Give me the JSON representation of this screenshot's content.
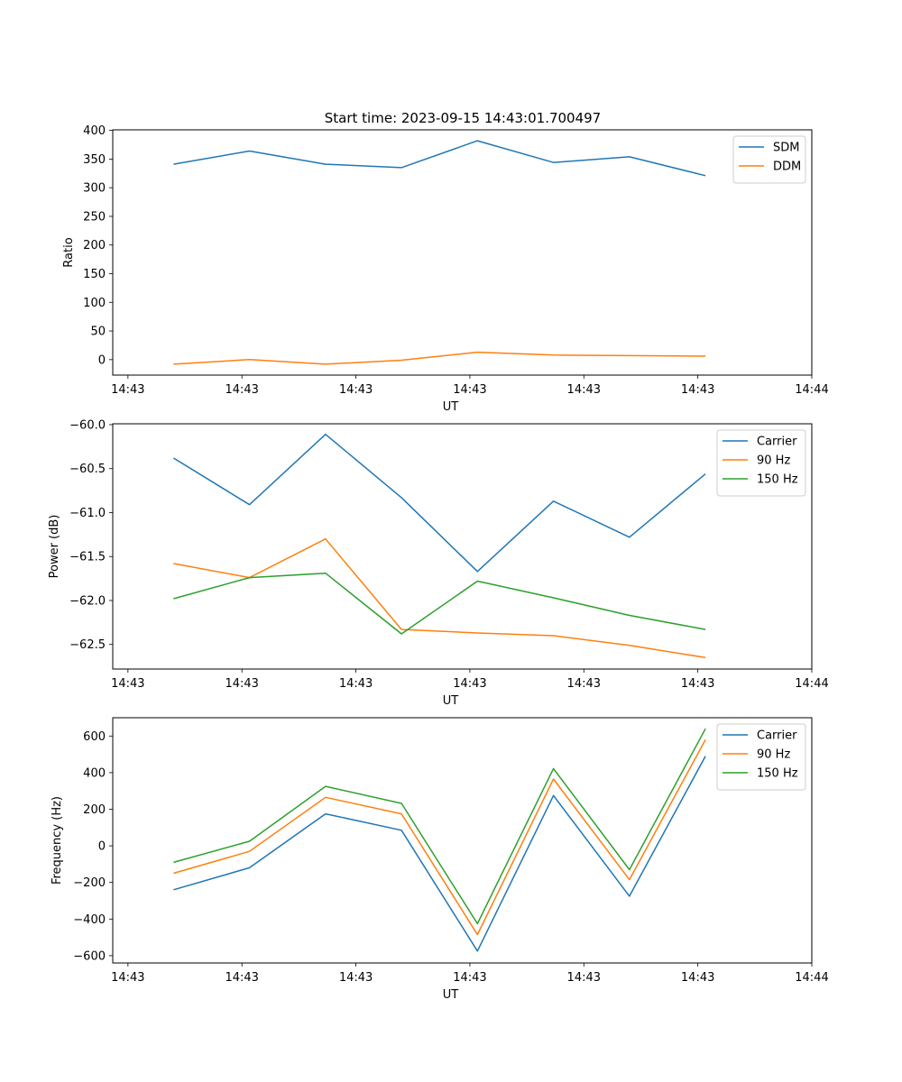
{
  "figure": {
    "title": "Start time: 2023-09-15 14:43:01.700497"
  },
  "chart_data": [
    {
      "type": "line",
      "title": "Start time: 2023-09-15 14:43:01.700497",
      "xlabel": "UT",
      "ylabel": "Ratio",
      "x": [
        1,
        2,
        3,
        4,
        5,
        6,
        7,
        8
      ],
      "xlim": [
        0.2,
        9.4
      ],
      "xticks": [
        0.4,
        1.9,
        3.4,
        4.9,
        6.4,
        7.9,
        9.4
      ],
      "xtick_labels": [
        "14:43",
        "14:43",
        "14:43",
        "14:43",
        "14:43",
        "14:43",
        "14:44"
      ],
      "ylim": [
        -27,
        401
      ],
      "yticks": [
        0,
        50,
        100,
        150,
        200,
        250,
        300,
        350,
        400
      ],
      "ytick_labels": [
        "0",
        "50",
        "100",
        "150",
        "200",
        "250",
        "300",
        "350",
        "400"
      ],
      "legend": "top-right",
      "series": [
        {
          "name": "SDM",
          "color": "#1f77b4",
          "values": [
            341,
            364,
            341,
            335,
            382,
            344,
            354,
            321
          ]
        },
        {
          "name": "DDM",
          "color": "#ff7f0e",
          "values": [
            -8,
            0,
            -8,
            -1,
            13,
            8,
            7,
            6
          ]
        }
      ]
    },
    {
      "type": "line",
      "xlabel": "UT",
      "ylabel": "Power (dB)",
      "x": [
        1,
        2,
        3,
        4,
        5,
        6,
        7,
        8
      ],
      "xlim": [
        0.2,
        9.4
      ],
      "xticks": [
        0.4,
        1.9,
        3.4,
        4.9,
        6.4,
        7.9,
        9.4
      ],
      "xtick_labels": [
        "14:43",
        "14:43",
        "14:43",
        "14:43",
        "14:43",
        "14:43",
        "14:44"
      ],
      "ylim": [
        -62.78,
        -59.99
      ],
      "yticks": [
        -62.5,
        -62.0,
        -61.5,
        -61.0,
        -60.5,
        -60.0
      ],
      "ytick_labels": [
        "−62.5",
        "−62.0",
        "−61.5",
        "−61.0",
        "−60.5",
        "−60.0"
      ],
      "legend": "top-right",
      "series": [
        {
          "name": "Carrier",
          "color": "#1f77b4",
          "values": [
            -60.38,
            -60.91,
            -60.11,
            -60.83,
            -61.67,
            -60.87,
            -61.28,
            -60.56
          ]
        },
        {
          "name": "90 Hz",
          "color": "#ff7f0e",
          "values": [
            -61.58,
            -61.74,
            -61.3,
            -62.33,
            -62.37,
            -62.4,
            -62.51,
            -62.65
          ]
        },
        {
          "name": "150 Hz",
          "color": "#2ca02c",
          "values": [
            -61.98,
            -61.74,
            -61.69,
            -62.38,
            -61.78,
            -61.97,
            -62.17,
            -62.33
          ]
        }
      ]
    },
    {
      "type": "line",
      "xlabel": "UT",
      "ylabel": "Frequency (Hz)",
      "x": [
        1,
        2,
        3,
        4,
        5,
        6,
        7,
        8
      ],
      "xlim": [
        0.2,
        9.4
      ],
      "xticks": [
        0.4,
        1.9,
        3.4,
        4.9,
        6.4,
        7.9,
        9.4
      ],
      "xtick_labels": [
        "14:43",
        "14:43",
        "14:43",
        "14:43",
        "14:43",
        "14:43",
        "14:44"
      ],
      "ylim": [
        -640,
        700
      ],
      "yticks": [
        -600,
        -400,
        -200,
        0,
        200,
        400,
        600
      ],
      "ytick_labels": [
        "−600",
        "−400",
        "−200",
        "0",
        "200",
        "400",
        "600"
      ],
      "legend": "top-right",
      "series": [
        {
          "name": "Carrier",
          "color": "#1f77b4",
          "values": [
            -240,
            -120,
            175,
            85,
            -575,
            275,
            -275,
            490
          ]
        },
        {
          "name": "90 Hz",
          "color": "#ff7f0e",
          "values": [
            -150,
            -30,
            265,
            175,
            -485,
            365,
            -185,
            580
          ]
        },
        {
          "name": "150 Hz",
          "color": "#2ca02c",
          "values": [
            -90,
            25,
            325,
            232,
            -425,
            422,
            -130,
            640
          ]
        }
      ]
    }
  ]
}
